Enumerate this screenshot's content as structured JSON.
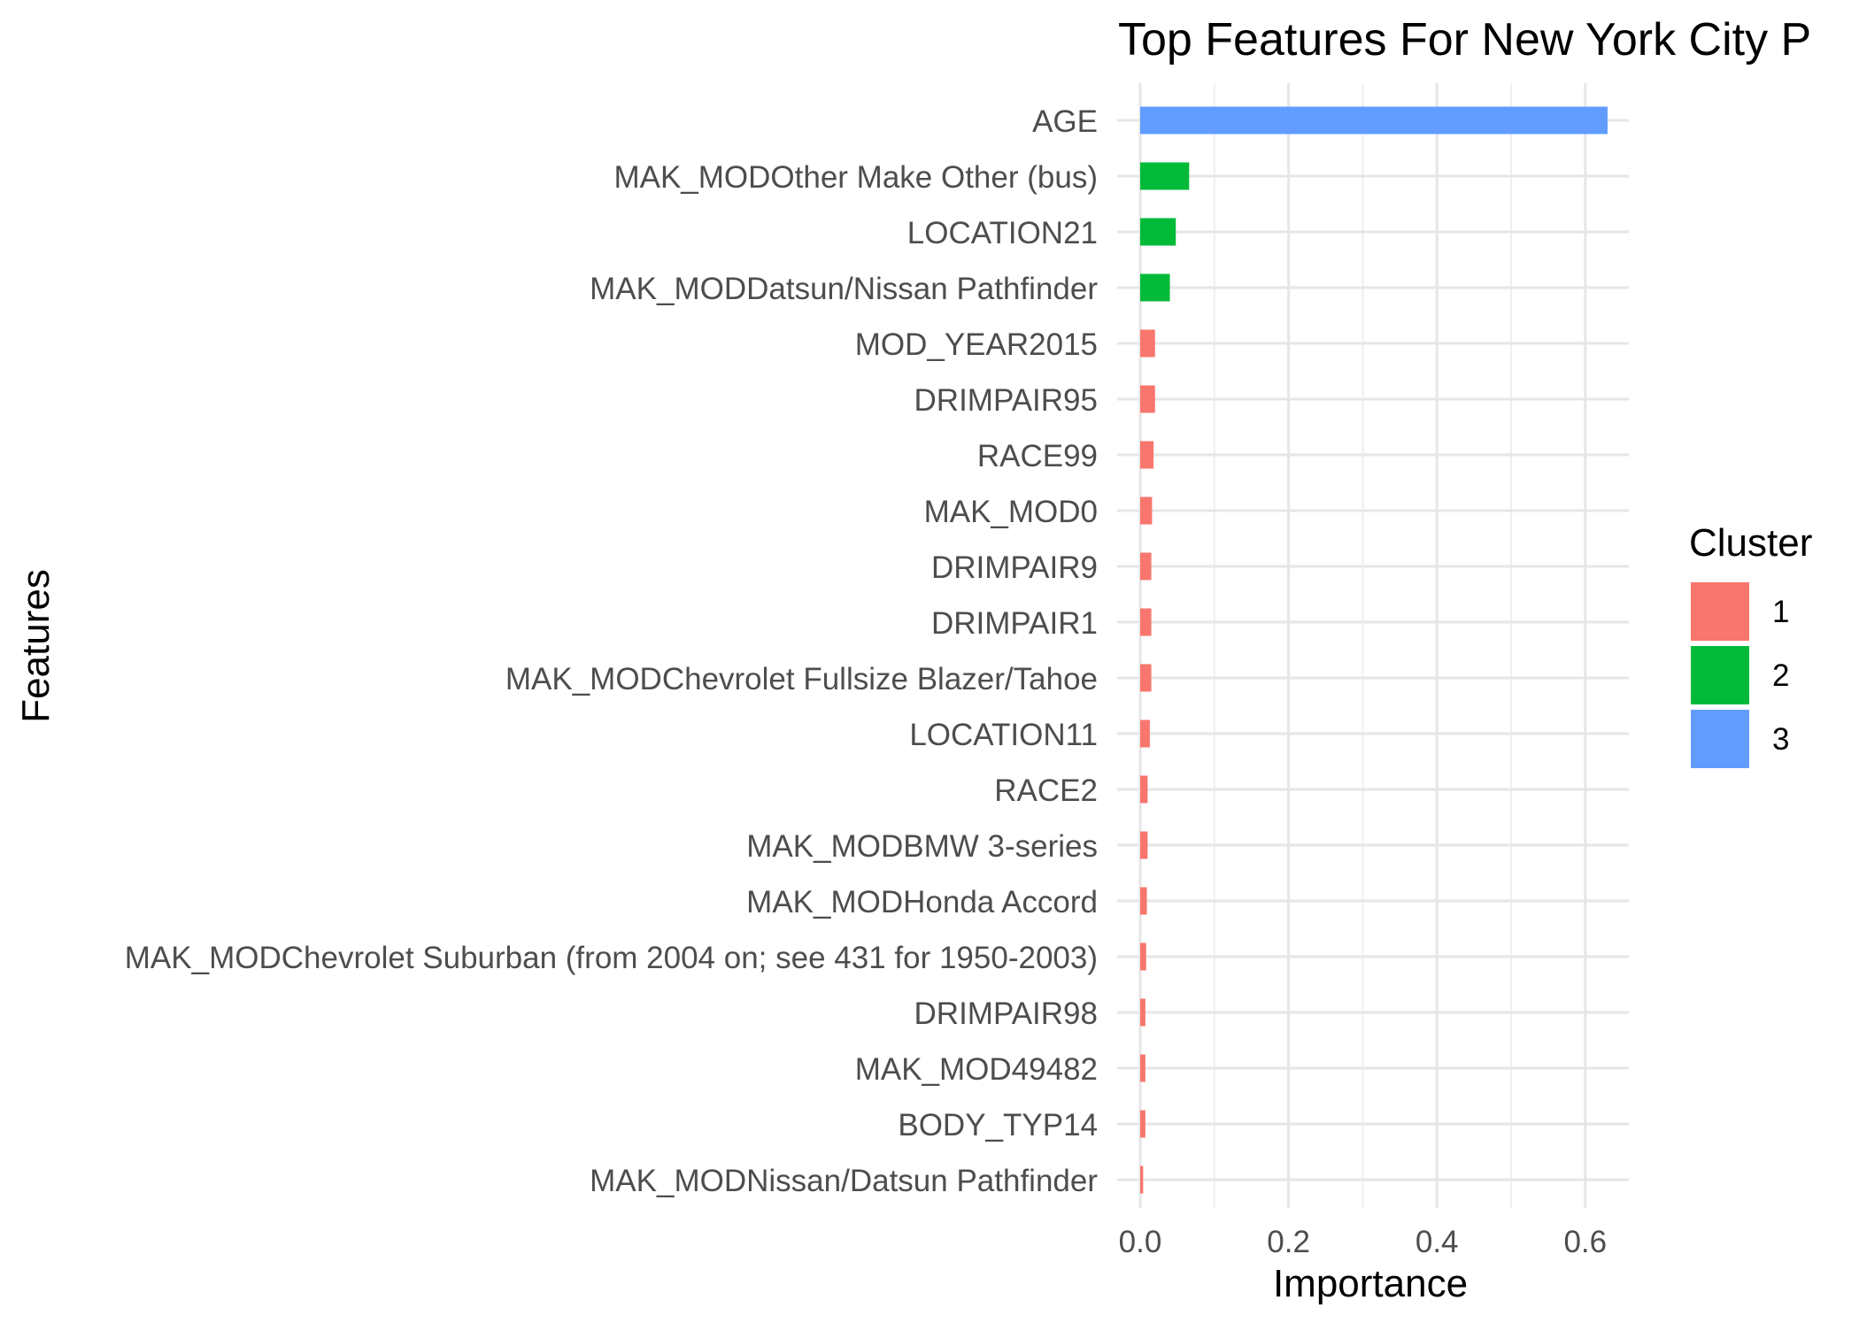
{
  "chart_data": {
    "type": "bar",
    "orientation": "horizontal",
    "title": "Top Features For New York City P",
    "xlabel": "Importance",
    "ylabel": "Features",
    "xlim": [
      -0.03,
      0.665
    ],
    "xticks": [
      0.0,
      0.2,
      0.4,
      0.6
    ],
    "xtick_labels": [
      "0.0",
      "0.2",
      "0.4",
      "0.6"
    ],
    "grid": true,
    "legend": {
      "title": "Cluster",
      "placement": "right",
      "entries": [
        {
          "label": "1",
          "color": "#F8766D"
        },
        {
          "label": "2",
          "color": "#00BA38"
        },
        {
          "label": "3",
          "color": "#619CFF"
        }
      ]
    },
    "bars": [
      {
        "feature": "AGE",
        "value": 0.63,
        "cluster": "3"
      },
      {
        "feature": "MAK_MODOther Make Other (bus)",
        "value": 0.066,
        "cluster": "2"
      },
      {
        "feature": "LOCATION21",
        "value": 0.048,
        "cluster": "2"
      },
      {
        "feature": "MAK_MODDatsun/Nissan Pathfinder",
        "value": 0.04,
        "cluster": "2"
      },
      {
        "feature": "MOD_YEAR2015",
        "value": 0.02,
        "cluster": "1"
      },
      {
        "feature": "DRIMPAIR95",
        "value": 0.02,
        "cluster": "1"
      },
      {
        "feature": "RACE99",
        "value": 0.018,
        "cluster": "1"
      },
      {
        "feature": "MAK_MOD0",
        "value": 0.016,
        "cluster": "1"
      },
      {
        "feature": "DRIMPAIR9",
        "value": 0.015,
        "cluster": "1"
      },
      {
        "feature": "DRIMPAIR1",
        "value": 0.015,
        "cluster": "1"
      },
      {
        "feature": "MAK_MODChevrolet Fullsize Blazer/Tahoe",
        "value": 0.015,
        "cluster": "1"
      },
      {
        "feature": "LOCATION11",
        "value": 0.013,
        "cluster": "1"
      },
      {
        "feature": "RACE2",
        "value": 0.01,
        "cluster": "1"
      },
      {
        "feature": "MAK_MODBMW 3-series",
        "value": 0.01,
        "cluster": "1"
      },
      {
        "feature": "MAK_MODHonda Accord",
        "value": 0.009,
        "cluster": "1"
      },
      {
        "feature": "MAK_MODChevrolet Suburban (from 2004 on; see 431 for 1950-2003)",
        "value": 0.008,
        "cluster": "1"
      },
      {
        "feature": "DRIMPAIR98",
        "value": 0.007,
        "cluster": "1"
      },
      {
        "feature": "MAK_MOD49482",
        "value": 0.007,
        "cluster": "1"
      },
      {
        "feature": "BODY_TYP14",
        "value": 0.007,
        "cluster": "1"
      },
      {
        "feature": "MAK_MODNissan/Datsun Pathfinder",
        "value": 0.004,
        "cluster": "1"
      }
    ]
  }
}
